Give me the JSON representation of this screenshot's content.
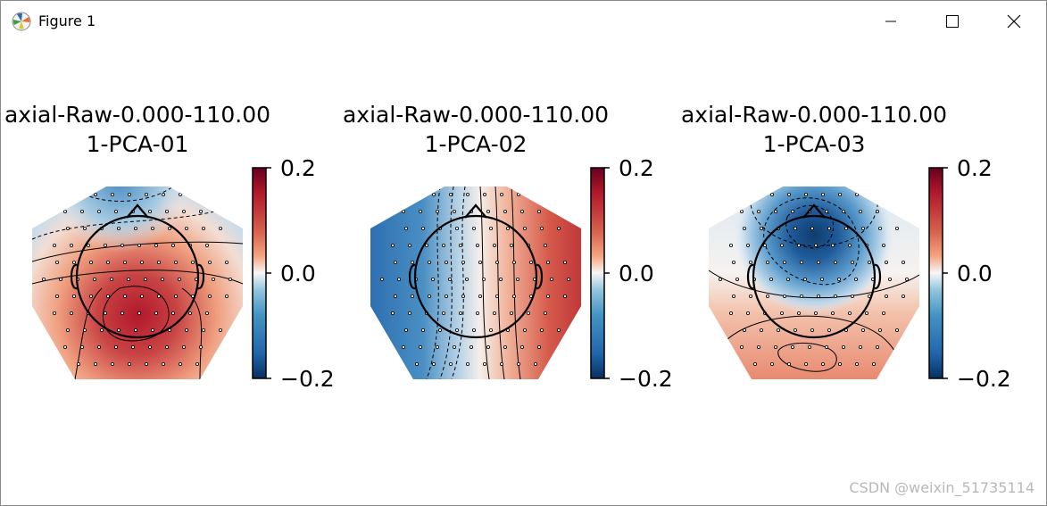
{
  "window": {
    "title": "Figure 1",
    "controls": [
      "minimize",
      "maximize",
      "close"
    ]
  },
  "figure": {
    "colormap": "RdBu_r",
    "colors": {
      "positive": "#a50d25",
      "neutral": "#f7f7f7",
      "negative": "#0d4a8c"
    }
  },
  "chart_data": [
    {
      "type": "heatmap",
      "subtype": "topomap",
      "title_line1": "axial-Raw-0.000-110.00",
      "title_line2": "1-PCA-01",
      "colorbar": {
        "ticks": [
          "0.2",
          "0.0",
          "−0.2"
        ],
        "range": [
          -0.2,
          0.2
        ]
      },
      "pattern": "positive maximum over central-posterior region, negative at frontal edge"
    },
    {
      "type": "heatmap",
      "subtype": "topomap",
      "title_line1": "axial-Raw-0.000-110.00",
      "title_line2": "1-PCA-02",
      "colorbar": {
        "ticks": [
          "0.2",
          "0.0",
          "−0.2"
        ],
        "range": [
          -0.2,
          0.2
        ]
      },
      "pattern": "negative on left hemisphere, positive on right hemisphere"
    },
    {
      "type": "heatmap",
      "subtype": "topomap",
      "title_line1": "axial-Raw-0.000-110.00",
      "title_line2": "1-PCA-03",
      "colorbar": {
        "ticks": [
          "0.2",
          "0.0",
          "−0.2"
        ],
        "range": [
          -0.2,
          0.2
        ]
      },
      "pattern": "strong negative at frontal-central region, positive at posterior"
    }
  ],
  "watermark": "CSDN @weixin_51735114"
}
